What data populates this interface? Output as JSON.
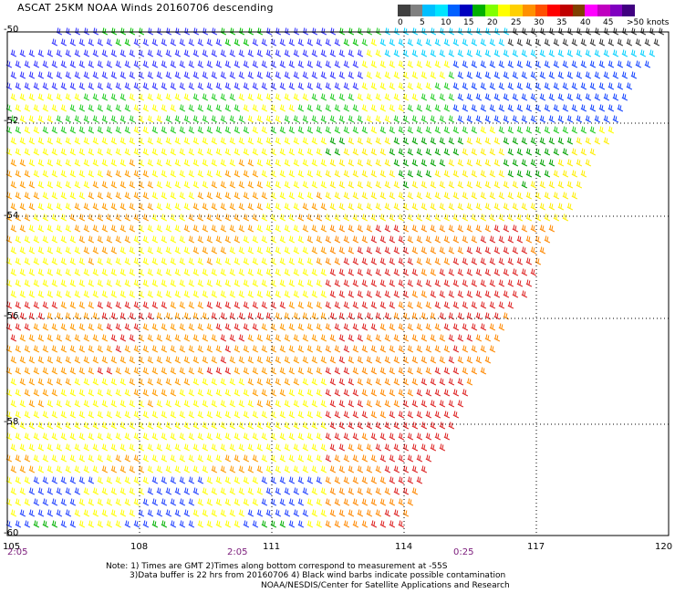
{
  "title": "ASCAT 25KM NOAA Winds 20160706 descending",
  "colorbar": {
    "colors": [
      "#404040",
      "#808080",
      "#00bfff",
      "#00e5ff",
      "#0060ff",
      "#0000c0",
      "#00b000",
      "#80ff00",
      "#ffff00",
      "#ffd000",
      "#ff9000",
      "#ff5000",
      "#ff0000",
      "#c00000",
      "#804000",
      "#ff00ff",
      "#c000c0",
      "#8000c0",
      "#400080"
    ],
    "labels": [
      "0",
      "5",
      "10",
      "15",
      "20",
      "25",
      "30",
      "35",
      "40",
      "45",
      ">50 knots"
    ]
  },
  "lat_labels": [
    "-50",
    "-52",
    "-54",
    "-56",
    "-58",
    "-60"
  ],
  "lon_labels": [
    "105",
    "108",
    "111",
    "114",
    "117",
    "120"
  ],
  "time_labels": [
    "2:05",
    "2:05",
    "0:25"
  ],
  "notes": [
    "Note: 1) Times are GMT 2)Times along bottom correspond to measurement at -55S",
    "3)Data buffer is 22 hrs from 20160706 4) Black wind barbs indicate possible contamination",
    "NOAA/NESDIS/Center for Satellite Applications and Research"
  ]
}
